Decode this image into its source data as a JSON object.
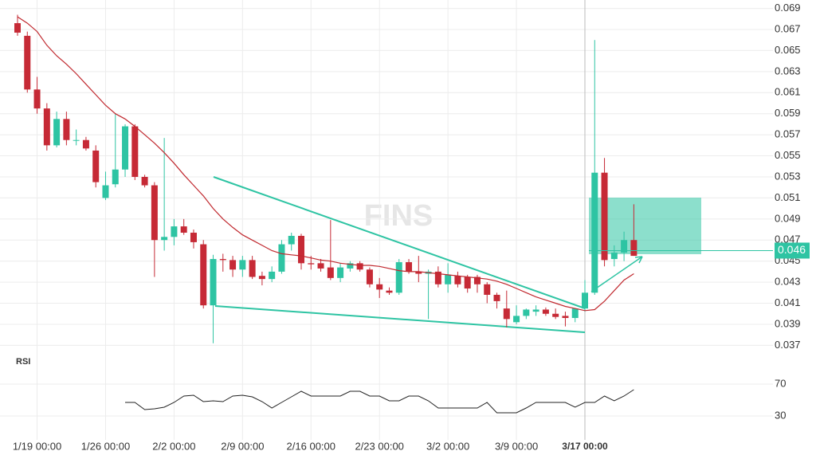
{
  "chart_data": {
    "type": "candlestick",
    "watermark": "FINS",
    "categories": [
      null,
      null,
      "1/19 00:00",
      null,
      null,
      null,
      null,
      null,
      null,
      "1/26 00:00",
      null,
      null,
      null,
      null,
      null,
      null,
      "2/2 00:00",
      null,
      null,
      null,
      null,
      null,
      null,
      "2/9 00:00",
      null,
      null,
      null,
      null,
      null,
      null,
      "2/16 00:00",
      null,
      null,
      null,
      null,
      null,
      null,
      "2/23 00:00",
      null,
      null,
      null,
      null,
      null,
      null,
      "3/2 00:00",
      null,
      null,
      null,
      null,
      null,
      null,
      "3/9 00:00",
      null,
      null,
      null,
      null,
      null,
      null,
      "3/17 00:00",
      null,
      null,
      null,
      null,
      null
    ],
    "crosshair": 58,
    "up_color": "#2ec4a3",
    "down_color": "#c62a36",
    "ohlc": {
      "open": [
        0.0676,
        0.0664,
        0.0613,
        0.0595,
        0.056,
        0.0585,
        0.0565,
        0.0565,
        0.0555,
        0.051,
        0.0523,
        0.0537,
        0.0578,
        0.053,
        0.0522,
        0.047,
        0.0473,
        0.0483,
        0.0477,
        0.0466,
        0.0408,
        0.0452,
        0.0451,
        0.0442,
        0.0451,
        0.0436,
        0.0433,
        0.044,
        0.0466,
        0.0474,
        0.0448,
        0.0448,
        0.0444,
        0.0434,
        0.0443,
        0.0448,
        0.0442,
        0.0428,
        0.0422,
        0.042,
        0.0449,
        0.044,
        0.0438,
        0.044,
        0.0428,
        0.0436,
        0.0435,
        0.0435,
        0.0428,
        0.0418,
        0.0405,
        0.0392,
        0.0398,
        0.0402,
        0.0404,
        0.04,
        0.0398,
        0.0396,
        0.0405,
        0.042,
        0.0534,
        0.0452,
        0.0458,
        0.047
      ],
      "high": [
        0.0684,
        0.0668,
        0.0625,
        0.06,
        0.0592,
        0.0592,
        0.0575,
        0.0568,
        0.056,
        0.0535,
        0.059,
        0.058,
        0.058,
        0.0532,
        0.0525,
        0.0567,
        0.049,
        0.049,
        0.048,
        0.047,
        0.0456,
        0.0457,
        0.0455,
        0.0455,
        0.0455,
        0.044,
        0.0445,
        0.047,
        0.0477,
        0.0476,
        0.0455,
        0.0452,
        0.0489,
        0.0448,
        0.045,
        0.045,
        0.0444,
        0.0434,
        0.0425,
        0.0452,
        0.0452,
        0.0455,
        0.0442,
        0.0445,
        0.0448,
        0.044,
        0.0437,
        0.0437,
        0.043,
        0.042,
        0.0422,
        0.0408,
        0.0405,
        0.0408,
        0.0406,
        0.0405,
        0.0402,
        0.0405,
        0.0432,
        0.066,
        0.0548,
        0.0465,
        0.0478,
        0.0504
      ],
      "low": [
        0.0664,
        0.061,
        0.059,
        0.0555,
        0.0558,
        0.056,
        0.056,
        0.0555,
        0.052,
        0.0508,
        0.052,
        0.053,
        0.0527,
        0.052,
        0.0435,
        0.046,
        0.0465,
        0.0475,
        0.0462,
        0.0405,
        0.0372,
        0.044,
        0.0435,
        0.0435,
        0.0433,
        0.0427,
        0.043,
        0.0438,
        0.046,
        0.0442,
        0.0442,
        0.044,
        0.0432,
        0.043,
        0.044,
        0.044,
        0.0425,
        0.0415,
        0.0418,
        0.0418,
        0.0438,
        0.043,
        0.0395,
        0.0425,
        0.042,
        0.0425,
        0.042,
        0.042,
        0.041,
        0.0405,
        0.0387,
        0.039,
        0.0395,
        0.0398,
        0.0398,
        0.0395,
        0.0388,
        0.0392,
        0.0402,
        0.0418,
        0.0445,
        0.0445,
        0.045,
        0.0455
      ],
      "close": [
        0.0667,
        0.0613,
        0.0595,
        0.056,
        0.0585,
        0.0565,
        0.0565,
        0.0557,
        0.0525,
        0.0522,
        0.0537,
        0.0578,
        0.053,
        0.0522,
        0.047,
        0.0473,
        0.0483,
        0.0477,
        0.0468,
        0.0408,
        0.0452,
        0.0451,
        0.0442,
        0.0451,
        0.0435,
        0.0433,
        0.044,
        0.0466,
        0.0474,
        0.0448,
        0.0447,
        0.0443,
        0.0434,
        0.0444,
        0.0448,
        0.0442,
        0.0428,
        0.0423,
        0.042,
        0.0449,
        0.044,
        0.0438,
        0.044,
        0.0428,
        0.0437,
        0.0428,
        0.0424,
        0.0428,
        0.0418,
        0.0412,
        0.0395,
        0.0398,
        0.0404,
        0.0404,
        0.04,
        0.0397,
        0.0396,
        0.0405,
        0.042,
        0.0534,
        0.0451,
        0.0458,
        0.047,
        0.0455
      ]
    },
    "ma": {
      "color": "#c0282e",
      "values": [
        0.0682,
        0.0676,
        0.0668,
        0.0655,
        0.0645,
        0.0637,
        0.0628,
        0.0618,
        0.0608,
        0.0598,
        0.059,
        0.0585,
        0.0578,
        0.057,
        0.0562,
        0.0553,
        0.0543,
        0.0532,
        0.0522,
        0.0512,
        0.05,
        0.049,
        0.0482,
        0.0475,
        0.047,
        0.0465,
        0.046,
        0.0457,
        0.0456,
        0.0455,
        0.0453,
        0.0451,
        0.045,
        0.0448,
        0.0447,
        0.0446,
        0.0446,
        0.0445,
        0.0443,
        0.0441,
        0.044,
        0.044,
        0.0439,
        0.0438,
        0.0437,
        0.0436,
        0.0435,
        0.0434,
        0.0433,
        0.0431,
        0.0428,
        0.0424,
        0.042,
        0.0416,
        0.0413,
        0.041,
        0.0407,
        0.0405,
        0.0403,
        0.0404,
        0.0412,
        0.0422,
        0.0432,
        0.0438
      ]
    },
    "ylim": [
      0.0365,
      0.0698
    ],
    "yticks": [
      0.069,
      0.067,
      0.065,
      0.063,
      0.061,
      0.059,
      0.057,
      0.055,
      0.053,
      0.051,
      0.049,
      0.047,
      0.045,
      0.043,
      0.041,
      0.039,
      0.037
    ],
    "last_price": 0.046,
    "grid": true,
    "rsi": {
      "label": "RSI",
      "color": "#222222",
      "ylim": [
        0,
        100
      ],
      "yticks": [
        70,
        30
      ],
      "values": [
        null,
        null,
        null,
        null,
        null,
        null,
        null,
        null,
        null,
        null,
        null,
        47,
        47,
        38,
        39,
        41,
        47,
        55,
        56,
        48,
        49,
        48,
        55,
        56,
        54,
        48,
        40,
        47,
        54,
        61,
        55,
        55,
        55,
        55,
        61,
        61,
        55,
        55,
        49,
        49,
        55,
        55,
        49,
        40,
        40,
        40,
        40,
        40,
        47,
        34,
        34,
        34,
        40,
        47,
        47,
        47,
        47,
        41,
        47,
        47,
        55,
        49,
        55,
        63
      ]
    }
  }
}
